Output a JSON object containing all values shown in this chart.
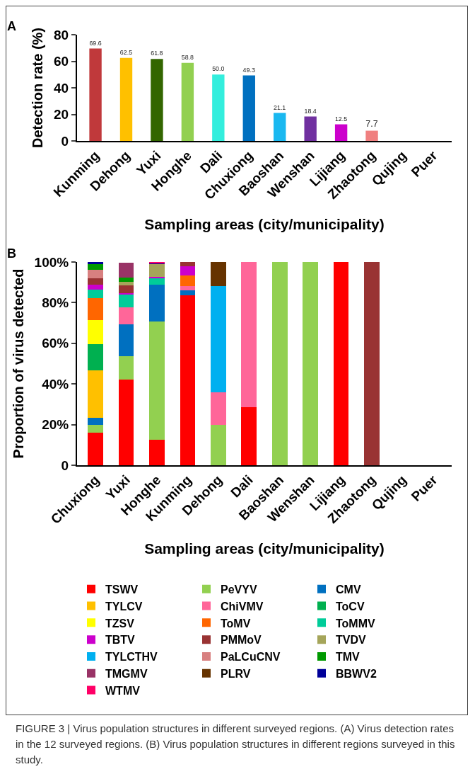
{
  "chart_data": [
    {
      "type": "bar",
      "title": "A",
      "xlabel": "Sampling areas (city/municipality)",
      "ylabel": "Detection rate (%)",
      "categories": [
        "Kunming",
        "Dehong",
        "Yuxi",
        "Honghe",
        "Dali",
        "Chuxiong",
        "Baoshan",
        "Wenshan",
        "Lijiang",
        "Zhaotong",
        "Qujing",
        "Puer"
      ],
      "values": [
        69.6,
        62.5,
        61.8,
        58.8,
        50.0,
        49.3,
        21.1,
        18.4,
        12.5,
        7.7,
        null,
        null
      ],
      "value_labels": [
        "69.6",
        "62.5",
        "61.8",
        "58.8",
        "50.0",
        "49.3",
        "21.1",
        "18.4",
        "12.5",
        "7.7",
        null,
        null
      ],
      "colors": [
        "#c0393b",
        "#ffc000",
        "#336600",
        "#92d050",
        "#33eedd",
        "#0070c0",
        "#1ab8f0",
        "#7030a0",
        "#cc00cc",
        "#f08080",
        "#999999",
        "#999999"
      ],
      "ylim": [
        0,
        80
      ],
      "yticks": [
        0,
        20,
        40,
        60,
        80
      ],
      "grid": false,
      "legend": false
    },
    {
      "type": "bar",
      "title": "B",
      "xlabel": "Sampling areas (city/municipality)",
      "ylabel": "Proportion of virus detected",
      "categories": [
        "Chuxiong",
        "Yuxi",
        "Honghe",
        "Kunming",
        "Dehong",
        "Dali",
        "Baoshan",
        "Wenshan",
        "Lijiang",
        "Zhaotong",
        "Qujing",
        "Puer"
      ],
      "stacked": true,
      "ylim": [
        0,
        100
      ],
      "yticks": [
        0,
        {
          "value": 20,
          "label": "20%"
        },
        {
          "value": 40,
          "label": "40%"
        },
        {
          "value": 60,
          "label": "60%"
        },
        {
          "value": 80,
          "label": "80%"
        },
        {
          "value": 100,
          "label": "100%"
        }
      ],
      "grid": false,
      "legend": "bottom",
      "series": [
        {
          "name": "TSWV",
          "color": "#ff0000",
          "values": [
            16,
            42,
            12.4,
            83.5,
            null,
            28.6,
            null,
            null,
            100,
            null,
            null,
            null
          ]
        },
        {
          "name": "PeVYV",
          "color": "#92d050",
          "values": [
            3.8,
            11.8,
            58.5,
            null,
            20,
            null,
            100,
            100,
            null,
            null,
            null,
            null
          ]
        },
        {
          "name": "CMV",
          "color": "#0070c0",
          "values": [
            3.5,
            15.6,
            17.9,
            2.7,
            null,
            null,
            null,
            null,
            null,
            null,
            null,
            null
          ]
        },
        {
          "name": "TYLCV",
          "color": "#ffc000",
          "values": [
            23.5,
            null,
            null,
            null,
            null,
            null,
            null,
            null,
            null,
            null,
            null,
            null
          ]
        },
        {
          "name": "ChiVMV",
          "color": "#ff6699",
          "values": [
            null,
            8.3,
            null,
            2.1,
            16,
            71.4,
            null,
            null,
            null,
            null,
            null,
            null
          ]
        },
        {
          "name": "ToCV",
          "color": "#00b050",
          "values": [
            12.7,
            null,
            null,
            null,
            null,
            null,
            null,
            null,
            null,
            null,
            null,
            null
          ]
        },
        {
          "name": "TZSV",
          "color": "#ffff00",
          "values": [
            11.8,
            null,
            null,
            null,
            null,
            null,
            null,
            null,
            null,
            null,
            null,
            null
          ]
        },
        {
          "name": "ToMV",
          "color": "#ff6600",
          "values": [
            10.9,
            null,
            null,
            5,
            null,
            null,
            null,
            null,
            null,
            null,
            null,
            null
          ]
        },
        {
          "name": "ToMMV",
          "color": "#00cc99",
          "values": [
            4.2,
            6.4,
            3.3,
            null,
            null,
            null,
            null,
            null,
            null,
            null,
            null,
            null
          ]
        },
        {
          "name": "TBTV",
          "color": "#cc00cc",
          "values": [
            2.6,
            0.5,
            0.6,
            4.5,
            null,
            null,
            null,
            null,
            null,
            null,
            null,
            null
          ]
        },
        {
          "name": "PMMoV",
          "color": "#993333",
          "values": [
            2.9,
            3.8,
            null,
            2.2,
            null,
            null,
            null,
            null,
            null,
            100,
            null,
            null
          ]
        },
        {
          "name": "TVDV",
          "color": "#a5a55a",
          "values": [
            null,
            1.8,
            6.2,
            null,
            null,
            null,
            null,
            null,
            null,
            null,
            null,
            null
          ]
        },
        {
          "name": "TYLCTHV",
          "color": "#00b0f0",
          "values": [
            null,
            null,
            null,
            null,
            52,
            null,
            null,
            null,
            null,
            null,
            null,
            null
          ]
        },
        {
          "name": "PaLCuCNV",
          "color": "#d88080",
          "values": [
            4.2,
            null,
            null,
            null,
            null,
            null,
            null,
            null,
            null,
            null,
            null,
            null
          ]
        },
        {
          "name": "TMV",
          "color": "#009900",
          "values": [
            3,
            2,
            null,
            null,
            null,
            null,
            null,
            null,
            null,
            null,
            null,
            null
          ]
        },
        {
          "name": "TMGMV",
          "color": "#993366",
          "values": [
            null,
            7.6,
            null,
            null,
            null,
            null,
            null,
            null,
            null,
            null,
            null,
            null
          ]
        },
        {
          "name": "PLRV",
          "color": "#663300",
          "values": [
            null,
            null,
            null,
            null,
            12,
            null,
            null,
            null,
            null,
            null,
            null,
            null
          ]
        },
        {
          "name": "BBWV2",
          "color": "#000099",
          "values": [
            0.8,
            null,
            0.5,
            null,
            null,
            null,
            null,
            null,
            null,
            null,
            null,
            null
          ]
        },
        {
          "name": "WTMV",
          "color": "#ff0066",
          "values": [
            null,
            null,
            0.6,
            null,
            null,
            null,
            null,
            null,
            null,
            null,
            null,
            null
          ]
        }
      ],
      "annotations": [
        "FIGURE 3 | Virus population structures in different surveyed regions. (A) Virus detection rates in the 12 surveyed regions. (B) Virus population structures in different regions surveyed in this study."
      ]
    }
  ]
}
